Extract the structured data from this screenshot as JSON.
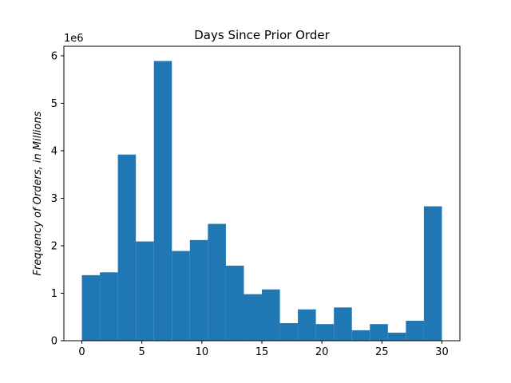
{
  "chart_data": {
    "type": "bar",
    "title": "Days Since Prior Order",
    "xlabel": "",
    "ylabel": "Frequency of Orders, in Millions",
    "y_offset_label": "1e6",
    "xlim": [
      -1.5,
      31.5
    ],
    "ylim": [
      0,
      6.2
    ],
    "x_ticks": [
      0,
      5,
      10,
      15,
      20,
      25,
      30
    ],
    "y_ticks": [
      0,
      1,
      2,
      3,
      4,
      5,
      6
    ],
    "bin_edges": [
      0,
      1.5,
      3,
      4.5,
      6,
      7.5,
      9,
      10.5,
      12,
      13.5,
      15,
      16.5,
      18,
      19.5,
      21,
      22.5,
      24,
      25.5,
      27,
      28.5,
      30
    ],
    "values": [
      1.38,
      1.44,
      3.92,
      2.09,
      5.89,
      1.89,
      2.12,
      2.46,
      1.58,
      0.98,
      1.08,
      0.37,
      0.66,
      0.35,
      0.7,
      0.22,
      0.35,
      0.17,
      0.42,
      2.83
    ],
    "bar_color": "#1f77b4"
  }
}
